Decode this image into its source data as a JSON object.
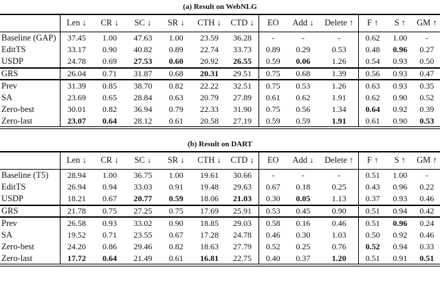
{
  "page": {
    "background": "#ffffff",
    "text_color": "#111111"
  },
  "tables": [
    {
      "caption": "(a) Result on WebNLG",
      "columns": [
        "Len ↓",
        "CR ↓",
        "SC ↓",
        "SR ↓",
        "CTH ↓",
        "CTD ↓",
        "EO",
        "Add ↓",
        "Delete ↑",
        "F ↑",
        "S ↑",
        "GM ↑"
      ],
      "sections": [
        {
          "rows": [
            {
              "label": "Baseline (GAP)",
              "values": [
                "37.45",
                "1.00",
                "47.63",
                "1.00",
                "23.59",
                "36.28",
                "-",
                "-",
                "-",
                "0.62",
                "1.00",
                "-"
              ],
              "bold": []
            },
            {
              "label": "EditTS",
              "values": [
                "33.17",
                "0.90",
                "40.82",
                "0.89",
                "22.74",
                "33.73",
                "0.89",
                "0.29",
                "0.53",
                "0.48",
                "0.96",
                "0.27"
              ],
              "bold": [
                10
              ]
            },
            {
              "label": "USDP",
              "values": [
                "24.78",
                "0.69",
                "27.53",
                "0.60",
                "20.92",
                "26.55",
                "0.59",
                "0.06",
                "1.26",
                "0.54",
                "0.93",
                "0.50"
              ],
              "bold": [
                2,
                3,
                5,
                7
              ]
            }
          ]
        },
        {
          "rows": [
            {
              "label": "GRS",
              "values": [
                "26.04",
                "0.71",
                "31.87",
                "0.68",
                "20.31",
                "29.51",
                "0.75",
                "0.68",
                "1.39",
                "0.56",
                "0.93",
                "0.47"
              ],
              "bold": [
                4
              ]
            }
          ]
        },
        {
          "rows": [
            {
              "label": "Prev",
              "values": [
                "31.39",
                "0.85",
                "38.70",
                "0.82",
                "22.22",
                "32.51",
                "0.75",
                "0.53",
                "1.26",
                "0.63",
                "0.93",
                "0.35"
              ],
              "bold": []
            },
            {
              "label": "SA",
              "values": [
                "23.69",
                "0.65",
                "28.84",
                "0.63",
                "20.79",
                "27.89",
                "0.61",
                "0.62",
                "1.91",
                "0.62",
                "0.90",
                "0.52"
              ],
              "bold": []
            },
            {
              "label": "Zero-best",
              "values": [
                "30.01",
                "0.82",
                "36.94",
                "0.79",
                "22.33",
                "31.90",
                "0.75",
                "0.56",
                "1.34",
                "0.64",
                "0.92",
                "0.39"
              ],
              "bold": [
                9
              ]
            },
            {
              "label": "Zero-last",
              "values": [
                "23.07",
                "0.64",
                "28.12",
                "0.61",
                "20.58",
                "27.19",
                "0.59",
                "0.59",
                "1.91",
                "0.61",
                "0.90",
                "0.53"
              ],
              "bold": [
                0,
                1,
                8,
                11
              ]
            }
          ]
        }
      ]
    },
    {
      "caption": "(b) Result on DART",
      "columns": [
        "Len ↓",
        "CR ↓",
        "SC ↓",
        "SR ↓",
        "CTH ↓",
        "CTD ↓",
        "EO",
        "Add ↓",
        "Delete ↑",
        "F ↑",
        "S ↑",
        "GM ↑"
      ],
      "sections": [
        {
          "rows": [
            {
              "label": "Baseline (T5)",
              "values": [
                "28.94",
                "1.00",
                "36.75",
                "1.00",
                "19.61",
                "30.66",
                "-",
                "-",
                "-",
                "0.51",
                "1.00",
                "-"
              ],
              "bold": []
            },
            {
              "label": "EditTS",
              "values": [
                "26.94",
                "0.94",
                "33.03",
                "0.91",
                "19.48",
                "29.63",
                "0.67",
                "0.18",
                "0.25",
                "0.43",
                "0.96",
                "0.22"
              ],
              "bold": []
            },
            {
              "label": "USDP",
              "values": [
                "18.21",
                "0.67",
                "20.77",
                "0.59",
                "18.06",
                "21.03",
                "0.30",
                "0.05",
                "1.13",
                "0.37",
                "0.93",
                "0.46"
              ],
              "bold": [
                2,
                3,
                5,
                7
              ]
            }
          ]
        },
        {
          "rows": [
            {
              "label": "GRS",
              "values": [
                "21.78",
                "0.75",
                "27.25",
                "0.75",
                "17.69",
                "25.91",
                "0.53",
                "0.45",
                "0.90",
                "0.51",
                "0.94",
                "0.42"
              ],
              "bold": []
            }
          ]
        },
        {
          "rows": [
            {
              "label": "Prev",
              "values": [
                "26.58",
                "0.93",
                "33.02",
                "0.90",
                "18.85",
                "29.03",
                "0.58",
                "0.16",
                "0.46",
                "0.51",
                "0.96",
                "0.24"
              ],
              "bold": [
                10
              ]
            },
            {
              "label": "SA",
              "values": [
                "19.52",
                "0.71",
                "23.55",
                "0.67",
                "17.28",
                "24.78",
                "0.46",
                "0.30",
                "1.03",
                "0.50",
                "0.92",
                "0.46"
              ],
              "bold": []
            },
            {
              "label": "Zero-best",
              "values": [
                "24.20",
                "0.86",
                "29.46",
                "0.82",
                "18.63",
                "27.79",
                "0.52",
                "0.25",
                "0.76",
                "0.52",
                "0.94",
                "0.33"
              ],
              "bold": [
                9
              ]
            },
            {
              "label": "Zero-last",
              "values": [
                "17.72",
                "0.64",
                "21.49",
                "0.61",
                "16.81",
                "22.75",
                "0.40",
                "0.37",
                "1.20",
                "0.51",
                "0.91",
                "0.51"
              ],
              "bold": [
                0,
                1,
                4,
                8,
                11
              ]
            }
          ]
        }
      ]
    }
  ]
}
